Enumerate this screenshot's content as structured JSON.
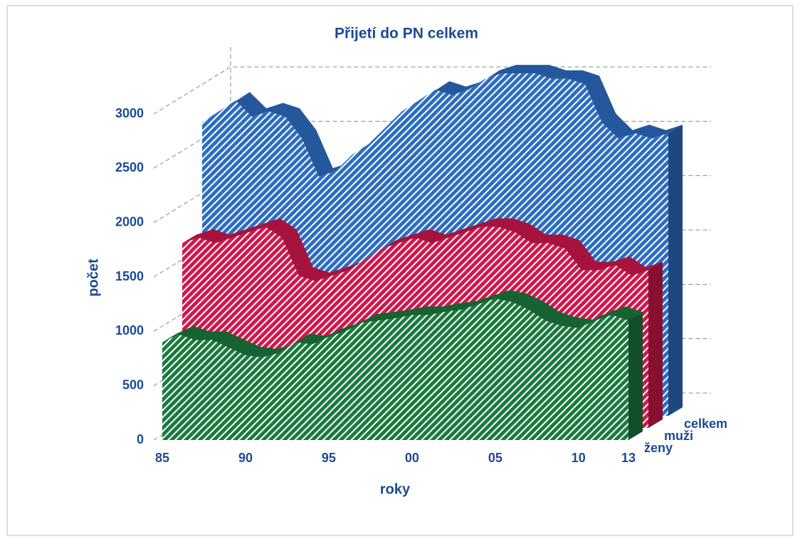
{
  "chart_data": {
    "type": "area3d",
    "title": "Přijetí do PN celkem",
    "x_label": "roky",
    "y_label": "počet",
    "categories": [
      "85",
      null,
      null,
      null,
      null,
      "90",
      null,
      null,
      null,
      null,
      "95",
      null,
      null,
      null,
      null,
      "00",
      null,
      null,
      null,
      null,
      "05",
      null,
      null,
      null,
      null,
      "10",
      null,
      null,
      "13"
    ],
    "series": [
      {
        "name": "ženy",
        "color": "#1b7a3e",
        "values": [
          900,
          970,
          920,
          920,
          850,
          780,
          760,
          800,
          900,
          880,
          950,
          1000,
          1080,
          1100,
          1120,
          1150,
          1150,
          1180,
          1200,
          1250,
          1300,
          1270,
          1200,
          1100,
          1050,
          1030,
          1100,
          1150,
          1100
        ]
      },
      {
        "name": "muži",
        "color": "#d0184c",
        "values": [
          1700,
          1750,
          1700,
          1750,
          1800,
          1850,
          1750,
          1400,
          1350,
          1400,
          1450,
          1550,
          1650,
          1700,
          1750,
          1700,
          1750,
          1800,
          1850,
          1850,
          1800,
          1700,
          1700,
          1650,
          1450,
          1450,
          1500,
          1400,
          1450
        ]
      },
      {
        "name": "celkem",
        "color": "#2d6dc2",
        "values": [
          2700,
          2800,
          2900,
          2750,
          2800,
          2750,
          2550,
          2200,
          2250,
          2400,
          2500,
          2650,
          2800,
          2900,
          3000,
          2950,
          3000,
          3100,
          3150,
          3150,
          3150,
          3100,
          3100,
          3050,
          2700,
          2550,
          2600,
          2550,
          2600
        ]
      }
    ],
    "ylim": [
      0,
      3000
    ],
    "yticks": [
      0,
      500,
      1000,
      1500,
      2000,
      2500,
      3000
    ],
    "grid": true
  }
}
